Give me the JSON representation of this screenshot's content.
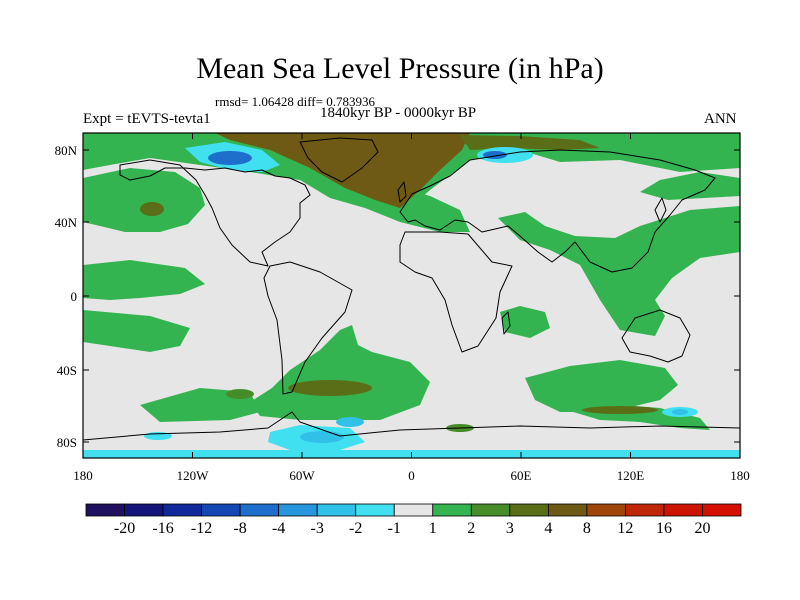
{
  "figure": {
    "title": "Mean Sea Level Pressure (in hPa)",
    "stats": "rmsd= 1.06428 diff= 0.783936",
    "period": "1840kyr BP - 0000kyr BP",
    "experiment": "Expt = tEVTS-tevta1",
    "season": "ANN"
  },
  "map": {
    "lat_ticks": [
      "80N",
      "40N",
      "0",
      "40S",
      "80S"
    ],
    "lon_ticks": [
      "180",
      "120W",
      "60W",
      "0",
      "60E",
      "120E",
      "180"
    ]
  },
  "colorbar": {
    "labels": [
      "-20",
      "-16",
      "-12",
      "-8",
      "-4",
      "-3",
      "-2",
      "-1",
      "1",
      "2",
      "3",
      "4",
      "8",
      "12",
      "16",
      "20"
    ],
    "colors": [
      "#201060",
      "#14147a",
      "#10289a",
      "#1446b4",
      "#1e6ecc",
      "#2896dc",
      "#30c0e8",
      "#40e0f0",
      "#e6e6e6",
      "#34b450",
      "#468c28",
      "#5a6e18",
      "#6e5a14",
      "#a0460a",
      "#be2808",
      "#cc1400",
      "#d41000"
    ]
  },
  "colors": {
    "neutral": "#e6e6e6",
    "green": "#34b450",
    "dark_green": "#468c28",
    "olive": "#5a6e18",
    "brown": "#6e5a14",
    "cyan": "#40e0f0",
    "light_blue": "#30c0e8",
    "blue": "#1e6ecc"
  }
}
